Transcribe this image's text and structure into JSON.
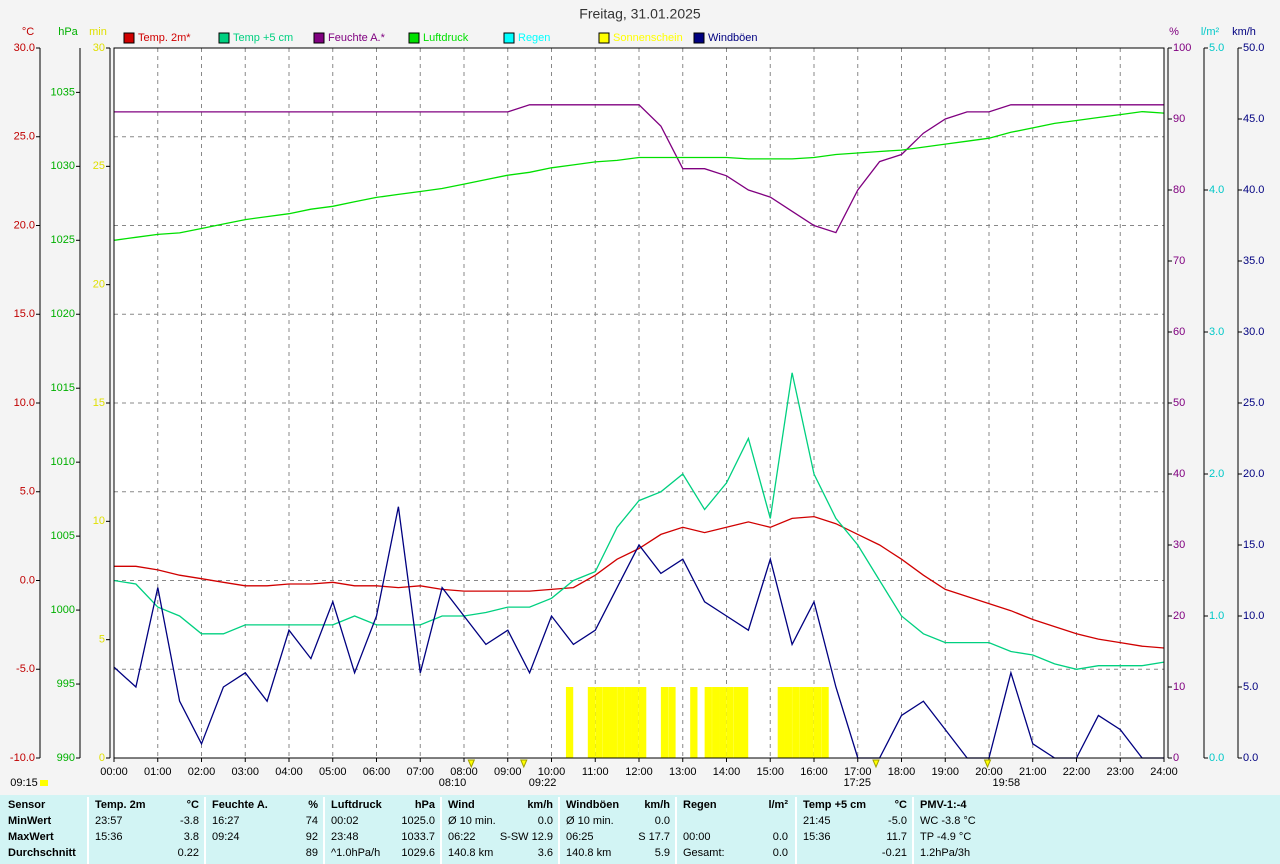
{
  "chart_data": {
    "type": "line",
    "title": "Freitag, 31.01.2025",
    "xlim": [
      0,
      24
    ],
    "xticks": [
      {
        "value": 0,
        "label": "00:00"
      },
      {
        "value": 1,
        "label": "01:00"
      },
      {
        "value": 2,
        "label": "02:00"
      },
      {
        "value": 3,
        "label": "03:00"
      },
      {
        "value": 4,
        "label": "04:00"
      },
      {
        "value": 5,
        "label": "05:00"
      },
      {
        "value": 6,
        "label": "06:00"
      },
      {
        "value": 7,
        "label": "07:00"
      },
      {
        "value": 8,
        "label": "08:00"
      },
      {
        "value": 9,
        "label": "09:00"
      },
      {
        "value": 10,
        "label": "10:00"
      },
      {
        "value": 11,
        "label": "11:00"
      },
      {
        "value": 12,
        "label": "12:00"
      },
      {
        "value": 13,
        "label": "13:00"
      },
      {
        "value": 14,
        "label": "14:00"
      },
      {
        "value": 15,
        "label": "15:00"
      },
      {
        "value": 16,
        "label": "16:00"
      },
      {
        "value": 17,
        "label": "17:00"
      },
      {
        "value": 18,
        "label": "18:00"
      },
      {
        "value": 19,
        "label": "19:00"
      },
      {
        "value": 20,
        "label": "20:00"
      },
      {
        "value": 21,
        "label": "21:00"
      },
      {
        "value": 22,
        "label": "22:00"
      },
      {
        "value": 23,
        "label": "23:00"
      },
      {
        "value": 24,
        "label": "24:00"
      }
    ],
    "grid": true,
    "axes": [
      {
        "unit": "°C",
        "color": "#c00000",
        "side": "left",
        "lim": [
          -10,
          30
        ],
        "grid": true,
        "ticks": [
          {
            "value": -10,
            "label": "-10.0"
          },
          {
            "value": -5,
            "label": "-5.0"
          },
          {
            "value": 0,
            "label": "0.0"
          },
          {
            "value": 5,
            "label": "5.0"
          },
          {
            "value": 10,
            "label": "10.0"
          },
          {
            "value": 15,
            "label": "15.0"
          },
          {
            "value": 20,
            "label": "20.0"
          },
          {
            "value": 25,
            "label": "25.0"
          },
          {
            "value": 30,
            "label": "30.0"
          }
        ]
      },
      {
        "unit": "hPa",
        "color": "#00b000",
        "side": "left",
        "lim": [
          990,
          1038
        ],
        "grid": false,
        "ticks": [
          990,
          995,
          1000,
          1005,
          1010,
          1015,
          1020,
          1025,
          1030,
          1035
        ]
      },
      {
        "unit": "min",
        "color": "#e0e000",
        "side": "left",
        "lim": [
          0,
          30
        ],
        "grid": false,
        "ticks": [
          0,
          5,
          10,
          15,
          20,
          25,
          30
        ]
      },
      {
        "unit": "%",
        "color": "#800080",
        "side": "right",
        "lim": [
          0,
          100
        ],
        "grid": false,
        "ticks": [
          0,
          10,
          20,
          30,
          40,
          50,
          60,
          70,
          80,
          90,
          100
        ]
      },
      {
        "unit": "l/m²",
        "color": "#00c8c8",
        "side": "right",
        "lim": [
          0,
          5
        ],
        "grid": false,
        "ticks": [
          {
            "value": 0,
            "label": "0.0"
          },
          {
            "value": 1,
            "label": "1.0"
          },
          {
            "value": 2,
            "label": "2.0"
          },
          {
            "value": 3,
            "label": "3.0"
          },
          {
            "value": 4,
            "label": "4.0"
          },
          {
            "value": 5,
            "label": "5.0"
          }
        ]
      },
      {
        "unit": "km/h",
        "color": "#000080",
        "side": "right",
        "lim": [
          0,
          50
        ],
        "grid": false,
        "ticks": [
          {
            "value": 0,
            "label": "0.0"
          },
          {
            "value": 5,
            "label": "5.0"
          },
          {
            "value": 10,
            "label": "10.0"
          },
          {
            "value": 15,
            "label": "15.0"
          },
          {
            "value": 20,
            "label": "20.0"
          },
          {
            "value": 25,
            "label": "25.0"
          },
          {
            "value": 30,
            "label": "30.0"
          },
          {
            "value": 35,
            "label": "35.0"
          },
          {
            "value": 40,
            "label": "40.0"
          },
          {
            "value": 45,
            "label": "45.0"
          },
          {
            "value": 50,
            "label": "50.0"
          }
        ]
      }
    ],
    "x": [
      0,
      0.5,
      1,
      1.5,
      2,
      2.5,
      3,
      3.5,
      4,
      4.5,
      5,
      5.5,
      6,
      6.5,
      7,
      7.5,
      8,
      8.5,
      9,
      9.5,
      10,
      10.5,
      11,
      11.5,
      12,
      12.5,
      13,
      13.5,
      14,
      14.5,
      15,
      15.5,
      16,
      16.5,
      17,
      17.5,
      18,
      18.5,
      19,
      19.5,
      20,
      20.5,
      21,
      21.5,
      22,
      22.5,
      23,
      23.5,
      24
    ],
    "series": [
      {
        "name": "Temp. 2m*",
        "color": "#d00000",
        "axis": 0,
        "kind": "line",
        "values": [
          0.8,
          0.8,
          0.6,
          0.3,
          0.1,
          -0.1,
          -0.3,
          -0.3,
          -0.2,
          -0.2,
          -0.1,
          -0.3,
          -0.3,
          -0.4,
          -0.3,
          -0.5,
          -0.6,
          -0.6,
          -0.6,
          -0.6,
          -0.5,
          -0.4,
          0.3,
          1.2,
          1.8,
          2.6,
          3.0,
          2.7,
          3.0,
          3.3,
          3.0,
          3.5,
          3.6,
          3.2,
          2.6,
          2.0,
          1.2,
          0.3,
          -0.5,
          -0.9,
          -1.3,
          -1.7,
          -2.2,
          -2.6,
          -3.0,
          -3.3,
          -3.5,
          -3.7,
          -3.8
        ]
      },
      {
        "name": "Temp +5 cm",
        "color": "#00d080",
        "axis": 0,
        "kind": "line",
        "values": [
          0,
          -0.2,
          -1.5,
          -2,
          -3,
          -3,
          -2.5,
          -2.5,
          -2.5,
          -2.5,
          -2.5,
          -2,
          -2.5,
          -2.5,
          -2.5,
          -2,
          -2,
          -1.8,
          -1.5,
          -1.5,
          -1,
          0,
          0.5,
          3,
          4.5,
          5,
          6,
          4,
          5.5,
          8,
          3.5,
          11.7,
          6,
          3.5,
          2,
          0,
          -2,
          -3,
          -3.5,
          -3.5,
          -3.5,
          -4,
          -4.2,
          -4.7,
          -5.0,
          -4.8,
          -4.8,
          -4.8,
          -4.6
        ]
      },
      {
        "name": "Feuchte A.*",
        "color": "#800080",
        "axis": 3,
        "kind": "line",
        "values": [
          91,
          91,
          91,
          91,
          91,
          91,
          91,
          91,
          91,
          91,
          91,
          91,
          91,
          91,
          91,
          91,
          91,
          91,
          91,
          92,
          92,
          92,
          92,
          92,
          92,
          89,
          83,
          83,
          82,
          80,
          79,
          77,
          75,
          74,
          80,
          84,
          85,
          88,
          90,
          91,
          91,
          92,
          92,
          92,
          92,
          92,
          92,
          92,
          92
        ]
      },
      {
        "name": "Luftdruck",
        "color": "#00e000",
        "axis": 1,
        "kind": "line",
        "values": [
          1025,
          1025.2,
          1025.4,
          1025.5,
          1025.8,
          1026.1,
          1026.4,
          1026.6,
          1026.8,
          1027.1,
          1027.3,
          1027.6,
          1027.9,
          1028.1,
          1028.3,
          1028.5,
          1028.8,
          1029.1,
          1029.4,
          1029.6,
          1029.9,
          1030.1,
          1030.3,
          1030.4,
          1030.6,
          1030.6,
          1030.6,
          1030.6,
          1030.6,
          1030.5,
          1030.5,
          1030.5,
          1030.6,
          1030.8,
          1030.9,
          1031,
          1031.1,
          1031.3,
          1031.5,
          1031.7,
          1031.9,
          1032.3,
          1032.6,
          1032.9,
          1033.1,
          1033.3,
          1033.5,
          1033.7,
          1033.6
        ]
      },
      {
        "name": "Regen",
        "color": "#00ffff",
        "axis": 4,
        "kind": "none"
      },
      {
        "name": "Sonnenschein",
        "color": "#ffff00",
        "axis": 2,
        "kind": "bar",
        "x": [
          10.33,
          10.83,
          11.0,
          11.17,
          11.33,
          11.5,
          11.67,
          11.83,
          12.0,
          12.5,
          12.67,
          13.17,
          13.5,
          13.67,
          13.83,
          14.0,
          14.17,
          14.33,
          15.17,
          15.33,
          15.5,
          15.67,
          15.83,
          16.0,
          16.17
        ],
        "values": [
          3,
          3,
          3,
          3,
          3,
          3,
          3,
          3,
          3,
          3,
          3,
          3,
          3,
          3,
          3,
          3,
          3,
          3,
          3,
          3,
          3,
          3,
          3,
          3,
          3
        ]
      },
      {
        "name": "Windböen",
        "color": "#000080",
        "axis": 5,
        "kind": "line",
        "values": [
          6.4,
          5,
          12,
          4,
          1,
          5,
          6,
          4,
          9,
          7,
          11,
          6,
          10,
          17.7,
          6,
          12,
          10,
          8,
          9,
          6,
          10,
          8,
          9,
          12,
          15,
          13,
          14,
          11,
          10,
          9,
          14,
          8,
          11,
          5,
          0,
          0,
          3,
          4,
          2,
          0,
          0,
          6,
          1,
          0,
          0,
          3,
          2,
          0,
          0
        ]
      }
    ],
    "day_length": "09:15",
    "annotations": [
      "08:10",
      "09:22",
      "17:25",
      "19:58"
    ],
    "table": {
      "header": [
        "Sensor",
        "Temp. 2m",
        "°C",
        "Feuchte A.",
        "%",
        "Luftdruck",
        "hPa",
        "Wind",
        "km/h",
        "Windböen",
        "km/h",
        "Regen",
        "l/m²",
        "Temp +5 cm",
        "°C",
        "PMV-1:-4"
      ],
      "rows": [
        [
          "MinWert",
          "23:57",
          "-3.8",
          "16:27",
          "74",
          "00:02",
          "1025.0",
          "Ø 10 min.",
          "0.0",
          "Ø 10 min.",
          "0.0",
          null,
          null,
          "21:45",
          "-5.0",
          "WC -3.8 °C"
        ],
        [
          "MaxWert",
          "15:36",
          "3.8",
          "09:24",
          "92",
          "23:48",
          "1033.7",
          "06:22",
          "S-SW 12.9",
          "06:25",
          "S 17.7",
          "00:00",
          "0.0",
          "15:36",
          "11.7",
          "TP -4.9 °C"
        ],
        [
          "Durchschnitt",
          null,
          "0.22",
          null,
          "89",
          "^1.0hPa/h",
          "1029.6",
          "140.8 km",
          "3.6",
          "140.8 km",
          "5.9",
          "Gesamt:",
          "0.0",
          null,
          "-0.21",
          "1.2hPa/3h"
        ]
      ]
    }
  }
}
